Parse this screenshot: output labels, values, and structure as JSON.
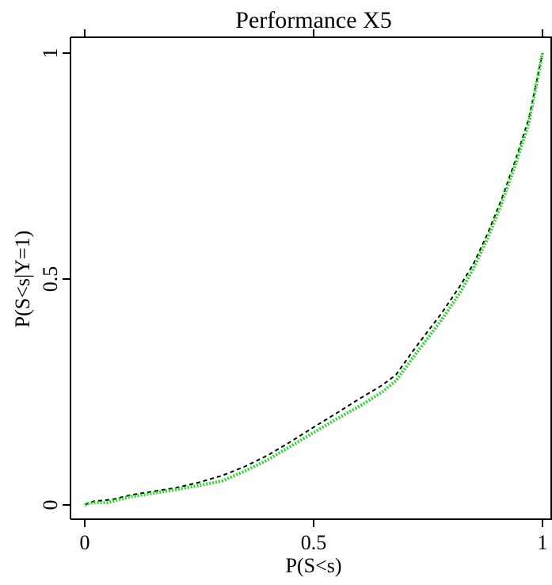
{
  "chart_data": {
    "type": "line",
    "title": "Performance X5",
    "xlabel": "P(S<s)",
    "ylabel": "P(S<s|Y=1)",
    "xlim": [
      0,
      1
    ],
    "ylim": [
      0,
      1
    ],
    "x_ticks": [
      {
        "value": 0,
        "label": "0"
      },
      {
        "value": 0.5,
        "label": "0.5"
      },
      {
        "value": 1,
        "label": "1"
      }
    ],
    "y_ticks": [
      {
        "value": 0,
        "label": "0"
      },
      {
        "value": 0.5,
        "label": "0.5"
      },
      {
        "value": 1,
        "label": "1"
      }
    ],
    "grid": false,
    "legend": "none",
    "series": [
      {
        "color": "#000000",
        "style": "dashed",
        "points": [
          [
            0,
            0
          ],
          [
            0.01,
            0.005
          ],
          [
            0.02,
            0.008
          ],
          [
            0.06,
            0.012
          ],
          [
            0.1,
            0.022
          ],
          [
            0.15,
            0.03
          ],
          [
            0.2,
            0.038
          ],
          [
            0.25,
            0.05
          ],
          [
            0.3,
            0.065
          ],
          [
            0.35,
            0.085
          ],
          [
            0.4,
            0.11
          ],
          [
            0.45,
            0.14
          ],
          [
            0.5,
            0.172
          ],
          [
            0.55,
            0.203
          ],
          [
            0.6,
            0.235
          ],
          [
            0.65,
            0.265
          ],
          [
            0.68,
            0.288
          ],
          [
            0.72,
            0.345
          ],
          [
            0.78,
            0.425
          ],
          [
            0.82,
            0.485
          ],
          [
            0.85,
            0.535
          ],
          [
            0.88,
            0.6
          ],
          [
            0.91,
            0.675
          ],
          [
            0.94,
            0.76
          ],
          [
            0.97,
            0.855
          ],
          [
            1,
            1
          ]
        ]
      },
      {
        "color": "#22dd22",
        "style": "dotted",
        "points": [
          [
            0,
            0
          ],
          [
            0.01,
            0.004
          ],
          [
            0.02,
            0.005
          ],
          [
            0.05,
            0.005
          ],
          [
            0.1,
            0.018
          ],
          [
            0.15,
            0.026
          ],
          [
            0.2,
            0.034
          ],
          [
            0.25,
            0.043
          ],
          [
            0.3,
            0.053
          ],
          [
            0.35,
            0.075
          ],
          [
            0.4,
            0.1
          ],
          [
            0.45,
            0.13
          ],
          [
            0.5,
            0.16
          ],
          [
            0.55,
            0.19
          ],
          [
            0.6,
            0.218
          ],
          [
            0.65,
            0.25
          ],
          [
            0.68,
            0.275
          ],
          [
            0.72,
            0.33
          ],
          [
            0.78,
            0.41
          ],
          [
            0.82,
            0.47
          ],
          [
            0.85,
            0.525
          ],
          [
            0.88,
            0.59
          ],
          [
            0.91,
            0.665
          ],
          [
            0.94,
            0.75
          ],
          [
            0.97,
            0.845
          ],
          [
            1,
            1
          ]
        ]
      }
    ]
  }
}
